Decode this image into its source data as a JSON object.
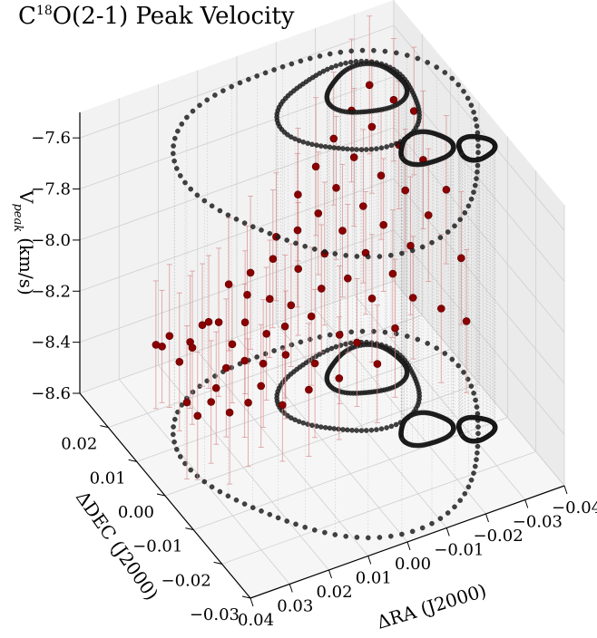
{
  "chart_data": {
    "type": "scatter",
    "title": "C¹⁸O(2-1) Peak Velocity",
    "title_main": "C",
    "title_sup": "18",
    "title_rest": "O(2-1) Peak Velocity",
    "xlabel": "ΔRA (J2000)",
    "ylabel": "ΔDEC (J2000)",
    "zlabel_v": "V",
    "zlabel_sub": "peak",
    "zlabel_unit": "(km/s)",
    "xlim": [
      0.04,
      -0.04
    ],
    "ylim": [
      -0.03,
      0.03
    ],
    "zlim": [
      -8.6,
      -7.5
    ],
    "x_ticks": [
      "0.04",
      "0.03",
      "0.02",
      "0.01",
      "0.00",
      "−0.01",
      "−0.02",
      "−0.03",
      "−0.04"
    ],
    "y_ticks": [
      "−0.03",
      "−0.02",
      "−0.01",
      "0.00",
      "0.01",
      "0.02"
    ],
    "z_ticks": [
      "−8.6",
      "−8.4",
      "−8.2",
      "−8.0",
      "−7.8",
      "−7.6"
    ],
    "grid": true,
    "point_color": "#8b0000",
    "errorbar_color": "#d88a8a",
    "contour_color": "#000000",
    "series": [
      {
        "points": [
          {
            "x": 0.038,
            "y": 0.006,
            "z": -8.1,
            "err": 0.25
          },
          {
            "x": 0.036,
            "y": 0.004,
            "z": -8.05,
            "err": 0.28
          },
          {
            "x": 0.035,
            "y": 0.008,
            "z": -8.15,
            "err": 0.22
          },
          {
            "x": 0.033,
            "y": 0.002,
            "z": -8.3,
            "err": 0.3
          },
          {
            "x": 0.032,
            "y": 0.006,
            "z": -8.2,
            "err": 0.27
          },
          {
            "x": 0.031,
            "y": 0.001,
            "z": -8.35,
            "err": 0.25
          },
          {
            "x": 0.03,
            "y": 0.005,
            "z": -8.12,
            "err": 0.26
          },
          {
            "x": 0.029,
            "y": -0.001,
            "z": -8.28,
            "err": 0.24
          },
          {
            "x": 0.028,
            "y": 0.007,
            "z": -8.18,
            "err": 0.3
          },
          {
            "x": 0.027,
            "y": 0.0,
            "z": -8.25,
            "err": 0.22
          },
          {
            "x": 0.026,
            "y": 0.004,
            "z": -8.05,
            "err": 0.26
          },
          {
            "x": 0.025,
            "y": -0.002,
            "z": -8.33,
            "err": 0.28
          },
          {
            "x": 0.024,
            "y": 0.009,
            "z": -8.14,
            "err": 0.24
          },
          {
            "x": 0.023,
            "y": 0.002,
            "z": -8.22,
            "err": 0.27
          },
          {
            "x": 0.022,
            "y": 0.006,
            "z": -8.1,
            "err": 0.29
          },
          {
            "x": 0.021,
            "y": -0.003,
            "z": -8.3,
            "err": 0.25
          },
          {
            "x": 0.02,
            "y": 0.004,
            "z": -8.17,
            "err": 0.23
          },
          {
            "x": 0.019,
            "y": 0.001,
            "z": -8.2,
            "err": 0.3
          },
          {
            "x": 0.018,
            "y": 0.008,
            "z": -8.0,
            "err": 0.26
          },
          {
            "x": 0.017,
            "y": -0.002,
            "z": -8.27,
            "err": 0.24
          },
          {
            "x": 0.016,
            "y": 0.005,
            "z": -8.12,
            "err": 0.28
          },
          {
            "x": 0.015,
            "y": 0.0,
            "z": -8.22,
            "err": 0.25
          },
          {
            "x": 0.014,
            "y": 0.007,
            "z": -8.05,
            "err": 0.27
          },
          {
            "x": 0.013,
            "y": -0.004,
            "z": -8.34,
            "err": 0.22
          },
          {
            "x": 0.012,
            "y": 0.003,
            "z": -8.16,
            "err": 0.26
          },
          {
            "x": 0.011,
            "y": 0.01,
            "z": -8.02,
            "err": 0.3
          },
          {
            "x": 0.01,
            "y": -0.001,
            "z": -8.2,
            "err": 0.25
          },
          {
            "x": 0.009,
            "y": 0.006,
            "z": -8.08,
            "err": 0.23
          },
          {
            "x": 0.008,
            "y": 0.002,
            "z": -8.14,
            "err": 0.28
          },
          {
            "x": 0.007,
            "y": -0.005,
            "z": -8.3,
            "err": 0.26
          },
          {
            "x": 0.006,
            "y": 0.009,
            "z": -7.98,
            "err": 0.27
          },
          {
            "x": 0.005,
            "y": 0.004,
            "z": -8.1,
            "err": 0.24
          },
          {
            "x": 0.004,
            "y": -0.003,
            "z": -8.24,
            "err": 0.29
          },
          {
            "x": 0.003,
            "y": 0.012,
            "z": -7.95,
            "err": 0.25
          },
          {
            "x": 0.002,
            "y": 0.001,
            "z": -8.12,
            "err": 0.27
          },
          {
            "x": 0.001,
            "y": 0.007,
            "z": -8.02,
            "err": 0.26
          },
          {
            "x": 0.0,
            "y": -0.006,
            "z": -8.28,
            "err": 0.24
          },
          {
            "x": -0.001,
            "y": 0.01,
            "z": -7.92,
            "err": 0.3
          },
          {
            "x": -0.002,
            "y": 0.003,
            "z": -8.06,
            "err": 0.25
          },
          {
            "x": -0.003,
            "y": -0.002,
            "z": -8.18,
            "err": 0.27
          },
          {
            "x": -0.004,
            "y": 0.014,
            "z": -7.85,
            "err": 0.26
          },
          {
            "x": -0.005,
            "y": 0.006,
            "z": -7.98,
            "err": 0.28
          },
          {
            "x": -0.006,
            "y": -0.004,
            "z": -8.2,
            "err": 0.25
          },
          {
            "x": -0.007,
            "y": 0.011,
            "z": -7.9,
            "err": 0.24
          },
          {
            "x": -0.008,
            "y": 0.002,
            "z": -8.04,
            "err": 0.29
          },
          {
            "x": -0.009,
            "y": -0.007,
            "z": -8.26,
            "err": 0.23
          },
          {
            "x": -0.01,
            "y": 0.016,
            "z": -7.8,
            "err": 0.27
          },
          {
            "x": -0.011,
            "y": 0.008,
            "z": -7.95,
            "err": 0.26
          },
          {
            "x": -0.012,
            "y": -0.001,
            "z": -8.1,
            "err": 0.25
          },
          {
            "x": -0.013,
            "y": 0.013,
            "z": -7.86,
            "err": 0.28
          },
          {
            "x": -0.014,
            "y": 0.004,
            "z": -8.0,
            "err": 0.24
          },
          {
            "x": -0.015,
            "y": -0.005,
            "z": -8.18,
            "err": 0.27
          },
          {
            "x": -0.016,
            "y": 0.018,
            "z": -7.75,
            "err": 0.26
          },
          {
            "x": -0.017,
            "y": 0.009,
            "z": -7.9,
            "err": 0.3
          },
          {
            "x": -0.018,
            "y": 0.0,
            "z": -8.05,
            "err": 0.25
          },
          {
            "x": -0.019,
            "y": 0.015,
            "z": -7.8,
            "err": 0.27
          },
          {
            "x": -0.02,
            "y": 0.006,
            "z": -7.95,
            "err": 0.26
          },
          {
            "x": -0.021,
            "y": -0.003,
            "z": -8.12,
            "err": 0.24
          },
          {
            "x": -0.022,
            "y": 0.02,
            "z": -7.7,
            "err": 0.28
          },
          {
            "x": -0.023,
            "y": 0.011,
            "z": -7.84,
            "err": 0.25
          },
          {
            "x": -0.024,
            "y": 0.002,
            "z": -8.0,
            "err": 0.27
          },
          {
            "x": -0.025,
            "y": 0.017,
            "z": -7.74,
            "err": 0.26
          },
          {
            "x": -0.026,
            "y": -0.006,
            "z": -8.15,
            "err": 0.29
          },
          {
            "x": -0.027,
            "y": 0.008,
            "z": -7.88,
            "err": 0.24
          },
          {
            "x": -0.028,
            "y": 0.022,
            "z": -7.66,
            "err": 0.27
          },
          {
            "x": -0.029,
            "y": 0.013,
            "z": -7.78,
            "err": 0.25
          },
          {
            "x": -0.03,
            "y": 0.004,
            "z": -7.94,
            "err": 0.26
          },
          {
            "x": -0.031,
            "y": -0.008,
            "z": -8.2,
            "err": 0.28
          },
          {
            "x": -0.032,
            "y": 0.019,
            "z": -7.7,
            "err": 0.24
          },
          {
            "x": -0.033,
            "y": 0.01,
            "z": -7.82,
            "err": 0.27
          },
          {
            "x": -0.034,
            "y": -0.002,
            "z": -8.05,
            "err": 0.26
          },
          {
            "x": -0.035,
            "y": 0.016,
            "z": -7.72,
            "err": 0.25
          },
          {
            "x": -0.036,
            "y": 0.006,
            "z": -7.9,
            "err": 0.29
          }
        ]
      }
    ],
    "contour_levels": [
      {
        "rx": 0.034,
        "ry": 0.026,
        "cx": -0.004,
        "cy": 0.0
      },
      {
        "rx": 0.016,
        "ry": 0.011,
        "cx": -0.014,
        "cy": 0.009
      },
      {
        "rx": 0.009,
        "ry": 0.006,
        "cx": -0.02,
        "cy": 0.012
      },
      {
        "rx": 0.006,
        "ry": 0.004,
        "cx": -0.022,
        "cy": -0.006
      },
      {
        "rx": 0.004,
        "ry": 0.003,
        "cx": -0.032,
        "cy": -0.01
      }
    ]
  }
}
